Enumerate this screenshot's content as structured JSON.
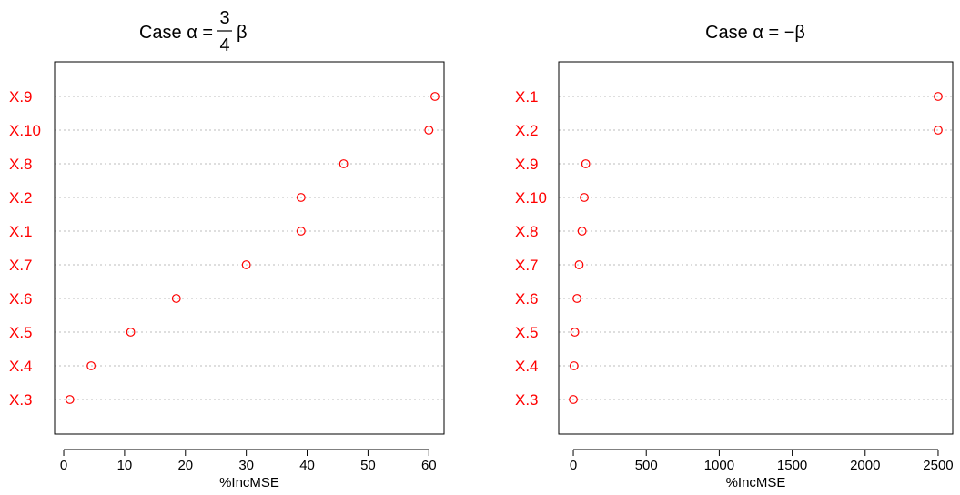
{
  "chart_data": [
    {
      "type": "scatter",
      "title_text": "Case",
      "title_expr": {
        "lhs": "α",
        "eq": "=",
        "numerator": "3",
        "denominator": "4",
        "rhs": "β"
      },
      "xlabel": "%IncMSE",
      "ylabel": "",
      "xlim": [
        -1.5,
        62.5
      ],
      "xticks": [
        0,
        10,
        20,
        30,
        40,
        50,
        60
      ],
      "grid": "horizontal dotted",
      "categories": [
        "X.9",
        "X.10",
        "X.8",
        "X.2",
        "X.1",
        "X.7",
        "X.6",
        "X.5",
        "X.4",
        "X.3"
      ],
      "values": [
        61.0,
        60.0,
        46.0,
        39.0,
        39.0,
        30.0,
        18.5,
        11.0,
        4.5,
        1.0
      ],
      "colors": {
        "points": "#ff0000",
        "labels": "#ff0000",
        "grid": "#bebebe"
      }
    },
    {
      "type": "scatter",
      "title_text": "Case",
      "title_expr": {
        "lhs": "α",
        "eq": "=",
        "rhs": "−β"
      },
      "xlabel": "%IncMSE",
      "ylabel": "",
      "xlim": [
        -100,
        2600
      ],
      "xticks": [
        0,
        500,
        1000,
        1500,
        2000,
        2500
      ],
      "grid": "horizontal dotted",
      "categories": [
        "X.1",
        "X.2",
        "X.9",
        "X.10",
        "X.8",
        "X.7",
        "X.6",
        "X.5",
        "X.4",
        "X.3"
      ],
      "values": [
        2500,
        2500,
        85,
        75,
        60,
        40,
        25,
        10,
        5,
        0
      ],
      "colors": {
        "points": "#ff0000",
        "labels": "#ff0000",
        "grid": "#bebebe"
      }
    }
  ]
}
